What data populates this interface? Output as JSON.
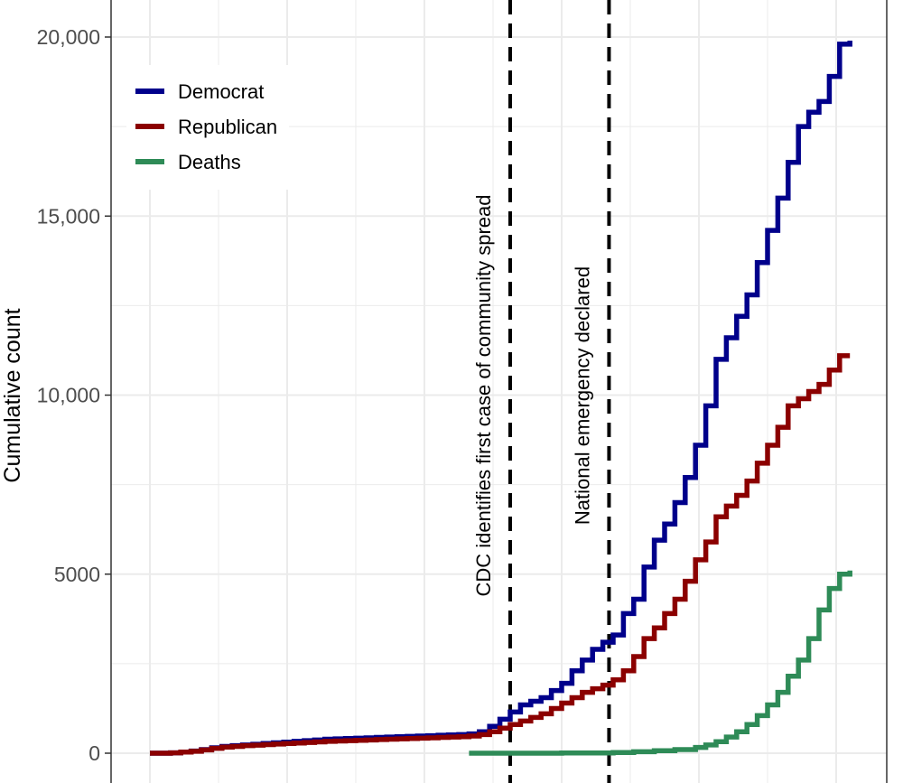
{
  "chart_data": {
    "type": "line",
    "ylabel": "Cumulative count",
    "xlabel": "",
    "ylim": [
      -1000,
      20200
    ],
    "yticks": [
      {
        "value": 0,
        "label": "0"
      },
      {
        "value": 5000,
        "label": "5000"
      },
      {
        "value": 10000,
        "label": "10,000"
      },
      {
        "value": 15000,
        "label": "15,000"
      },
      {
        "value": 20000,
        "label": "20,000"
      }
    ],
    "grid": true,
    "legend_position": "top-left",
    "annotations": [
      {
        "x": 35,
        "label": "CDC identifies first case of community spread"
      },
      {
        "x": 44.6,
        "label": "National emergency declared"
      }
    ],
    "series": [
      {
        "name": "Democrat",
        "color": "#00008b",
        "points": [
          [
            0,
            0
          ],
          [
            1,
            0
          ],
          [
            2,
            10
          ],
          [
            3,
            30
          ],
          [
            4,
            60
          ],
          [
            5,
            100
          ],
          [
            6,
            150
          ],
          [
            7,
            190
          ],
          [
            8,
            210
          ],
          [
            9,
            230
          ],
          [
            10,
            250
          ],
          [
            11,
            270
          ],
          [
            12,
            290
          ],
          [
            13,
            310
          ],
          [
            14,
            330
          ],
          [
            15,
            350
          ],
          [
            16,
            370
          ],
          [
            17,
            390
          ],
          [
            18,
            400
          ],
          [
            19,
            410
          ],
          [
            20,
            420
          ],
          [
            21,
            430
          ],
          [
            22,
            440
          ],
          [
            23,
            450
          ],
          [
            24,
            460
          ],
          [
            25,
            470
          ],
          [
            26,
            480
          ],
          [
            27,
            490
          ],
          [
            28,
            500
          ],
          [
            29,
            510
          ],
          [
            30,
            520
          ],
          [
            31,
            540
          ],
          [
            32,
            600
          ],
          [
            33,
            750
          ],
          [
            34,
            950
          ],
          [
            35,
            1150
          ],
          [
            36,
            1350
          ],
          [
            37,
            1450
          ],
          [
            38,
            1550
          ],
          [
            39,
            1750
          ],
          [
            40,
            1950
          ],
          [
            41,
            2300
          ],
          [
            42,
            2600
          ],
          [
            43,
            2900
          ],
          [
            44,
            3100
          ],
          [
            45,
            3300
          ],
          [
            46,
            3900
          ],
          [
            47,
            4300
          ],
          [
            48,
            5200
          ],
          [
            49,
            5950
          ],
          [
            50,
            6400
          ],
          [
            51,
            7000
          ],
          [
            52,
            7700
          ],
          [
            53,
            8600
          ],
          [
            54,
            9700
          ],
          [
            55,
            11000
          ],
          [
            56,
            11600
          ],
          [
            57,
            12200
          ],
          [
            58,
            12800
          ],
          [
            59,
            13700
          ],
          [
            60,
            14600
          ],
          [
            61,
            15500
          ],
          [
            62,
            16500
          ],
          [
            63,
            17500
          ],
          [
            64,
            17900
          ],
          [
            65,
            18200
          ],
          [
            66,
            18900
          ],
          [
            67,
            19800
          ],
          [
            68,
            19900
          ]
        ]
      },
      {
        "name": "Republican",
        "color": "#8b0000",
        "points": [
          [
            0,
            0
          ],
          [
            1,
            0
          ],
          [
            2,
            10
          ],
          [
            3,
            30
          ],
          [
            4,
            55
          ],
          [
            5,
            90
          ],
          [
            6,
            135
          ],
          [
            7,
            170
          ],
          [
            8,
            190
          ],
          [
            9,
            210
          ],
          [
            10,
            225
          ],
          [
            11,
            240
          ],
          [
            12,
            255
          ],
          [
            13,
            270
          ],
          [
            14,
            285
          ],
          [
            15,
            300
          ],
          [
            16,
            315
          ],
          [
            17,
            330
          ],
          [
            18,
            340
          ],
          [
            19,
            350
          ],
          [
            20,
            360
          ],
          [
            21,
            370
          ],
          [
            22,
            380
          ],
          [
            23,
            390
          ],
          [
            24,
            400
          ],
          [
            25,
            410
          ],
          [
            26,
            420
          ],
          [
            27,
            430
          ],
          [
            28,
            440
          ],
          [
            29,
            450
          ],
          [
            30,
            460
          ],
          [
            31,
            480
          ],
          [
            32,
            520
          ],
          [
            33,
            600
          ],
          [
            34,
            700
          ],
          [
            35,
            800
          ],
          [
            36,
            900
          ],
          [
            37,
            1000
          ],
          [
            38,
            1100
          ],
          [
            39,
            1250
          ],
          [
            40,
            1400
          ],
          [
            41,
            1550
          ],
          [
            42,
            1700
          ],
          [
            43,
            1800
          ],
          [
            44,
            1900
          ],
          [
            45,
            2050
          ],
          [
            46,
            2300
          ],
          [
            47,
            2700
          ],
          [
            48,
            3200
          ],
          [
            49,
            3500
          ],
          [
            50,
            3900
          ],
          [
            51,
            4300
          ],
          [
            52,
            4800
          ],
          [
            53,
            5400
          ],
          [
            54,
            5900
          ],
          [
            55,
            6600
          ],
          [
            56,
            6900
          ],
          [
            57,
            7200
          ],
          [
            58,
            7600
          ],
          [
            59,
            8100
          ],
          [
            60,
            8600
          ],
          [
            61,
            9100
          ],
          [
            62,
            9700
          ],
          [
            63,
            9900
          ],
          [
            64,
            10100
          ],
          [
            65,
            10300
          ],
          [
            66,
            10700
          ],
          [
            67,
            11100
          ],
          [
            68,
            11100
          ]
        ]
      },
      {
        "name": "Deaths",
        "color": "#2e8b57",
        "points": [
          [
            31,
            0
          ],
          [
            35,
            0
          ],
          [
            40,
            5
          ],
          [
            45,
            20
          ],
          [
            47,
            40
          ],
          [
            49,
            70
          ],
          [
            51,
            100
          ],
          [
            53,
            160
          ],
          [
            54,
            230
          ],
          [
            55,
            320
          ],
          [
            56,
            450
          ],
          [
            57,
            600
          ],
          [
            58,
            800
          ],
          [
            59,
            1050
          ],
          [
            60,
            1350
          ],
          [
            61,
            1700
          ],
          [
            62,
            2150
          ],
          [
            63,
            2600
          ],
          [
            64,
            3200
          ],
          [
            65,
            4000
          ],
          [
            66,
            4600
          ],
          [
            67,
            5000
          ],
          [
            68,
            5100
          ]
        ]
      }
    ]
  }
}
